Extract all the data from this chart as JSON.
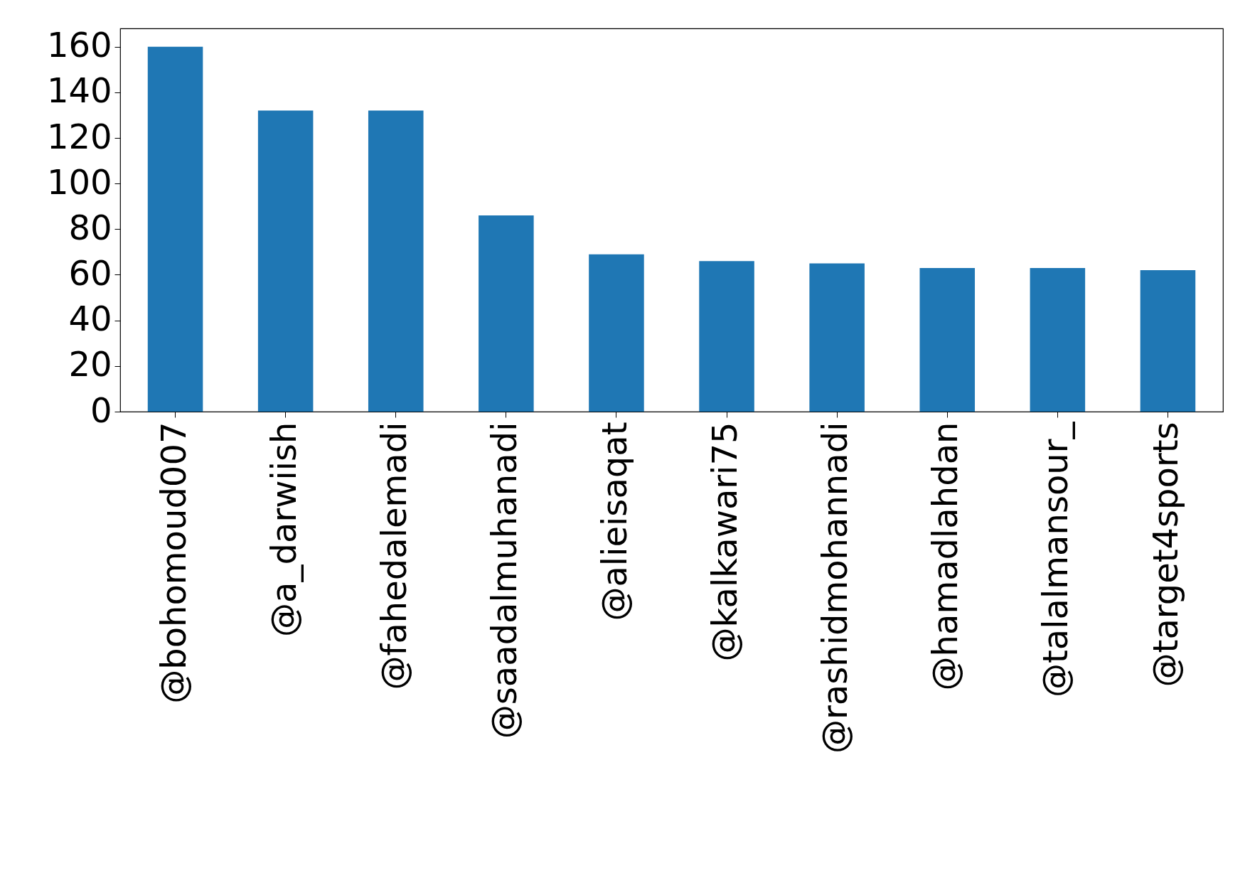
{
  "chart_data": {
    "type": "bar",
    "categories": [
      "@bohomoud007",
      "@a_darwiish",
      "@fahedalemadi",
      "@saadalmuhanadi",
      "@alieisaqat",
      "@kalkawari75",
      "@rashidmohannadi",
      "@hamadlahdan",
      "@talalmansour_",
      "@target4sports"
    ],
    "values": [
      160,
      132,
      132,
      86,
      69,
      66,
      65,
      63,
      63,
      62
    ],
    "color": "#1f77b4",
    "ylim": [
      0,
      168
    ],
    "yticks": [
      0,
      20,
      40,
      60,
      80,
      100,
      120,
      140,
      160
    ],
    "grid": false
  }
}
